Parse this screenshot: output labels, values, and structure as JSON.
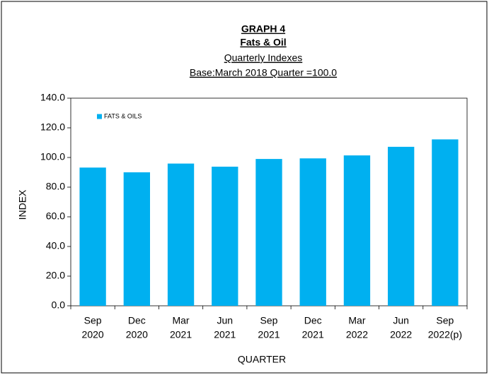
{
  "chart_data": {
    "type": "bar",
    "title": [
      "GRAPH 4",
      "Fats & Oil",
      "Quarterly Indexes",
      "Base:March 2018 Quarter =100.0"
    ],
    "categories": [
      [
        "Sep",
        "2020"
      ],
      [
        "Dec",
        "2020"
      ],
      [
        "Mar",
        "2021"
      ],
      [
        "Jun",
        "2021"
      ],
      [
        "Sep",
        "2021"
      ],
      [
        "Dec",
        "2021"
      ],
      [
        "Mar",
        "2022"
      ],
      [
        "Jun",
        "2022"
      ],
      [
        "Sep",
        "2022(p)"
      ]
    ],
    "series": [
      {
        "name": "FATS & OILS",
        "color": "#00b0f0",
        "values": [
          93.2,
          90.0,
          95.9,
          93.8,
          99.0,
          99.4,
          101.4,
          107.2,
          112.2
        ]
      }
    ],
    "xlabel": "QUARTER",
    "ylabel": "INDEX",
    "ylim": [
      0,
      140
    ],
    "yticks": [
      {
        "value": 0,
        "label": "0.0"
      },
      {
        "value": 20,
        "label": "20.0"
      },
      {
        "value": 40,
        "label": "40.0"
      },
      {
        "value": 60,
        "label": "60.0"
      },
      {
        "value": 80,
        "label": "80.0"
      },
      {
        "value": 100,
        "label": "100.0"
      },
      {
        "value": 120,
        "label": "120.0"
      },
      {
        "value": 140,
        "label": "140.0"
      }
    ],
    "grid": false,
    "legend": "upper left"
  }
}
